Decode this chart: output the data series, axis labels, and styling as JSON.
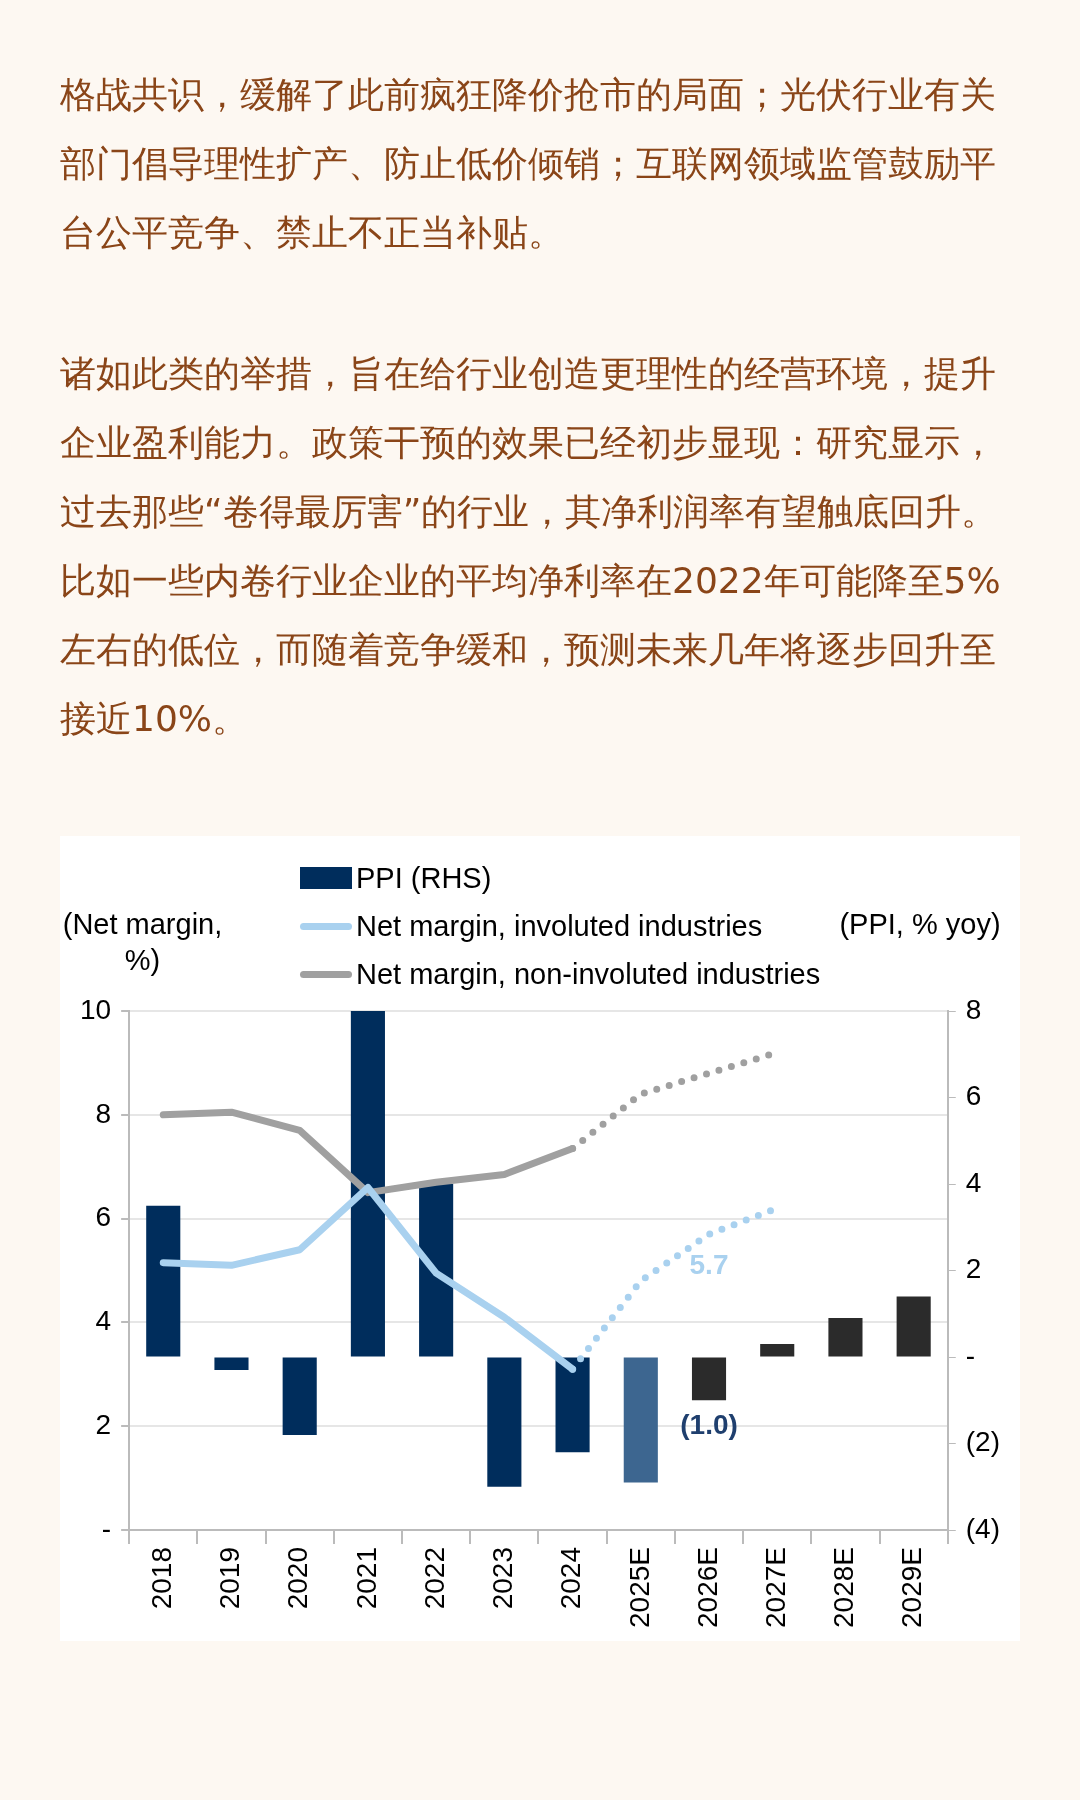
{
  "chart_data": {
    "type": "bar",
    "annotations": [
      "格战共识，缓解了此前疯狂降价抢市的局面；光伏行业有关部门倡导理性扩产、防止低价倾销；互联网领域监管鼓励平台公平竞争、禁止不正当补贴。",
      "诸如此类的举措，旨在给行业创造更理性的经营环境，提升企业盈利能力。政策干预的效果已经初步显现：研究显示，过去那些“卷得最厉害”的行业，其净利润率有望触底回升。比如一些内卷行业企业的平均净利率在2022年可能降至5%左右的低位，而随着竞争缓和，预测未来几年将逐步回升至接近10%。"
    ],
    "ylabel": "(Net margin, %)",
    "y2label": "(PPI, % yoy)",
    "categories": [
      "2018",
      "2019",
      "2020",
      "2021",
      "2022",
      "2023",
      "2024",
      "2025E",
      "2026E",
      "2027E",
      "2028E",
      "2029E"
    ],
    "series": [
      {
        "name": "PPI (RHS)",
        "axis": "y2",
        "colors": [
          "#002d5c",
          "#002d5c",
          "#002d5c",
          "#002d5c",
          "#002d5c",
          "#002d5c",
          "#002d5c",
          "#3d6690",
          "#2b2b2b",
          "#2b2b2b",
          "#2b2b2b",
          "#2b2b2b"
        ],
        "values": [
          3.5,
          -0.3,
          -1.8,
          8,
          4.0,
          -3.0,
          -2.2,
          -2.9,
          -1.0,
          0.3,
          0.9,
          1.4
        ],
        "value_labels": [
          null,
          null,
          null,
          null,
          null,
          null,
          null,
          null,
          "(1.0)",
          null,
          null,
          null
        ]
      },
      {
        "name": "Net margin, involuted industries",
        "type": "line",
        "color": "#a9d1ef",
        "values": [
          5.15,
          5.1,
          5.4,
          6.6,
          4.95,
          4.1,
          3.1,
          null,
          null,
          null,
          null,
          null
        ]
      },
      {
        "name": "Net margin, non-involuted industries",
        "type": "line",
        "color": "#a0a0a0",
        "values": [
          8.0,
          8.05,
          7.7,
          6.5,
          6.7,
          6.85,
          7.35,
          null,
          null,
          null,
          null,
          null
        ]
      },
      {
        "type": "line",
        "line_style": "dotted",
        "color": "#a9d1ef",
        "values": [
          null,
          null,
          null,
          null,
          null,
          null,
          3.1,
          4.8,
          5.7,
          6.2,
          null,
          null
        ],
        "value_labels": [
          null,
          null,
          null,
          null,
          null,
          null,
          null,
          null,
          "5.7",
          null,
          null,
          null
        ]
      },
      {
        "type": "line",
        "line_style": "dotted",
        "color": "#a0a0a0",
        "values": [
          null,
          null,
          null,
          null,
          null,
          null,
          7.35,
          8.4,
          8.8,
          9.2,
          null,
          null
        ]
      }
    ],
    "ylim": [
      0,
      10
    ],
    "yticks": [
      {
        "value": 0,
        "label": "-"
      },
      2,
      4,
      6,
      8,
      10
    ],
    "y2lim": [
      -4,
      8
    ],
    "y2ticks": [
      {
        "value": -4,
        "label": "(4)"
      },
      {
        "value": -2,
        "label": "(2)"
      },
      {
        "value": 0,
        "label": "-"
      },
      2,
      4,
      6,
      8
    ],
    "grid": "y",
    "legend": "top",
    "marker": "none"
  }
}
